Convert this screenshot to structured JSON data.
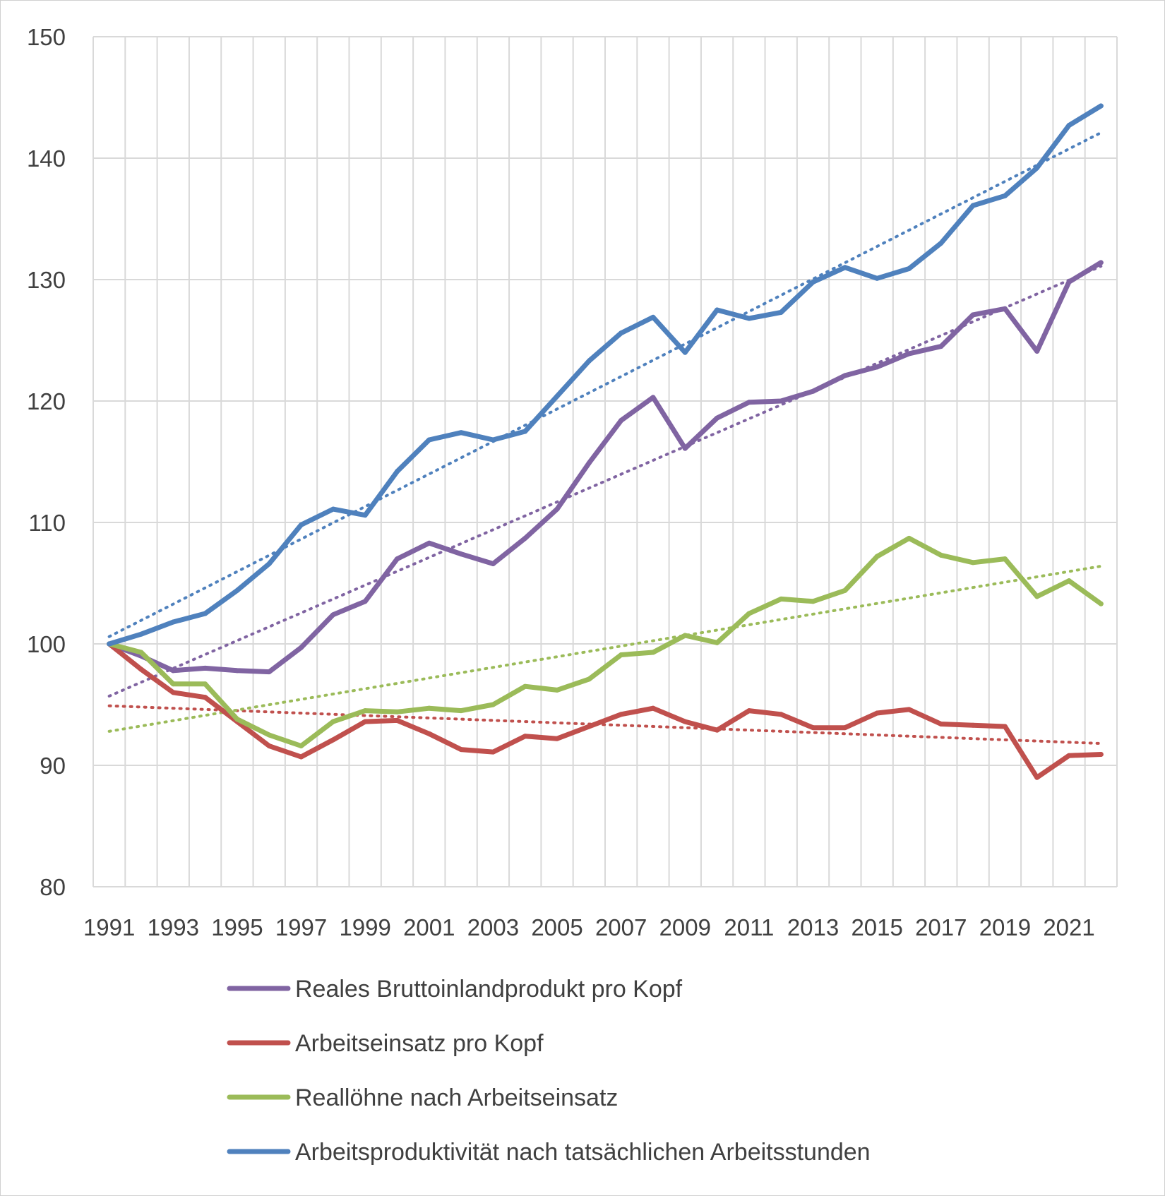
{
  "chart_data": {
    "type": "line",
    "title": "",
    "xlabel": "",
    "ylabel": "",
    "ylim": [
      80,
      150
    ],
    "yticks": [
      80,
      90,
      100,
      110,
      120,
      130,
      140,
      150
    ],
    "xlim": [
      1990.5,
      2022.5
    ],
    "xticks": [
      1991,
      1993,
      1995,
      1997,
      1999,
      2001,
      2003,
      2005,
      2007,
      2009,
      2011,
      2013,
      2015,
      2017,
      2019,
      2021
    ],
    "grid": true,
    "legend_position": "bottom",
    "x": [
      1991,
      1992,
      1993,
      1994,
      1995,
      1996,
      1997,
      1998,
      1999,
      2000,
      2001,
      2002,
      2003,
      2004,
      2005,
      2006,
      2007,
      2008,
      2009,
      2010,
      2011,
      2012,
      2013,
      2014,
      2015,
      2016,
      2017,
      2018,
      2019,
      2020,
      2021,
      2022
    ],
    "series": [
      {
        "name": "Reales Bruttoinlandprodukt pro Kopf",
        "color": "#8064a2",
        "values": [
          100,
          99.0,
          97.8,
          98.0,
          97.8,
          97.7,
          99.7,
          102.4,
          103.5,
          107.0,
          108.3,
          107.4,
          106.6,
          108.7,
          111.1,
          114.9,
          118.4,
          120.3,
          116.1,
          118.6,
          119.9,
          120.0,
          120.8,
          122.1,
          122.8,
          123.9,
          124.5,
          127.1,
          127.6,
          124.1,
          129.8,
          131.4
        ],
        "trend": {
          "start": 95.7,
          "end": 131.1
        }
      },
      {
        "name": "Arbeitseinsatz pro Kopf",
        "color": "#c0504d",
        "values": [
          100,
          97.9,
          96.0,
          95.6,
          93.6,
          91.6,
          90.7,
          92.1,
          93.6,
          93.7,
          92.6,
          91.3,
          91.1,
          92.4,
          92.2,
          93.2,
          94.2,
          94.7,
          93.6,
          92.9,
          94.5,
          94.2,
          93.1,
          93.1,
          94.3,
          94.6,
          93.4,
          93.3,
          93.2,
          89.0,
          90.8,
          90.9
        ],
        "trend": {
          "start": 94.9,
          "end": 91.8
        }
      },
      {
        "name": "Reallöhne nach Arbeitseinsatz",
        "color": "#9bbb59",
        "values": [
          100,
          99.3,
          96.7,
          96.7,
          93.8,
          92.5,
          91.6,
          93.6,
          94.5,
          94.4,
          94.7,
          94.5,
          95.0,
          96.5,
          96.2,
          97.1,
          99.1,
          99.3,
          100.7,
          100.1,
          102.5,
          103.7,
          103.5,
          104.4,
          107.2,
          108.7,
          107.3,
          106.7,
          107.0,
          103.9,
          105.2,
          103.3
        ],
        "trend": {
          "start": 92.8,
          "end": 106.4
        }
      },
      {
        "name": "Arbeitsproduktivität nach tatsächlichen Arbeitsstunden",
        "color": "#4f81bd",
        "values": [
          100,
          100.8,
          101.8,
          102.5,
          104.4,
          106.6,
          109.8,
          111.1,
          110.6,
          114.2,
          116.8,
          117.4,
          116.8,
          117.5,
          120.4,
          123.3,
          125.6,
          126.9,
          124.0,
          127.5,
          126.8,
          127.3,
          129.8,
          131.0,
          130.1,
          130.9,
          133.0,
          136.1,
          136.9,
          139.2,
          142.7,
          144.3
        ],
        "trend": {
          "start": 100.6,
          "end": 142.1
        }
      }
    ]
  }
}
